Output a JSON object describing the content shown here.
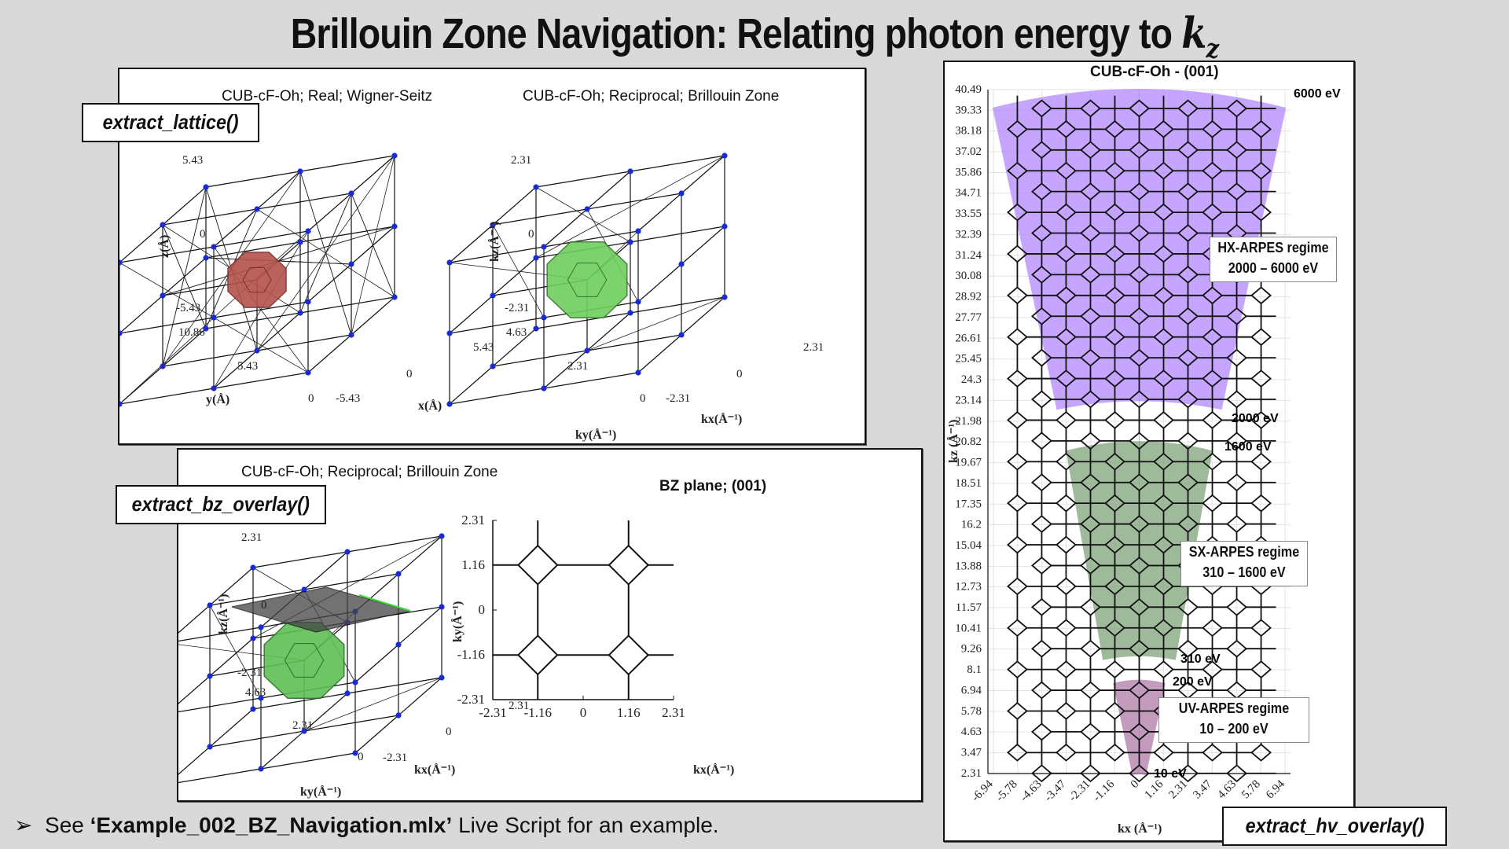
{
  "title": {
    "main": "Brillouin Zone Navigation: Relating photon energy to ",
    "k": "k",
    "sub": "z"
  },
  "panel_top_left": {
    "function_label": "extract_lattice()",
    "left_title": "CUB-cF-Oh; Real; Wigner-Seitz",
    "right_title": "CUB-cF-Oh; Reciprocal; Brillouin Zone",
    "left_ticks": {
      "z": [
        "5.43",
        "0",
        "-5.43"
      ],
      "y": [
        "10.86",
        "5.43",
        "0"
      ],
      "x": [
        "-5.43",
        "0",
        "5.43"
      ]
    },
    "left_axes": {
      "z": "z(Å)",
      "y": "y(Å)",
      "x": "x(Å)"
    },
    "right_ticks": {
      "kz": [
        "2.31",
        "0",
        "-2.31"
      ],
      "ky": [
        "4.63",
        "2.31",
        "0"
      ],
      "kx": [
        "-2.31",
        "0",
        "2.31"
      ]
    },
    "right_axes": {
      "kz": "kz(Å⁻¹)",
      "ky": "ky(Å⁻¹)",
      "kx": "kx(Å⁻¹)"
    }
  },
  "panel_bottom_left": {
    "function_label": "extract_bz_overlay()",
    "left_title": "CUB-cF-Oh; Reciprocal; Brillouin Zone",
    "right_title": "BZ plane; (001)",
    "left_ticks": {
      "kz": [
        "2.31",
        "0",
        "-2.31"
      ],
      "ky": [
        "4.63",
        "2.31",
        "0"
      ],
      "kx": [
        "-2.31",
        "0",
        "2.31"
      ]
    },
    "left_axes": {
      "kz": "kz(Å⁻¹)",
      "ky": "ky(Å⁻¹)",
      "kx": "kx(Å⁻¹)"
    },
    "plane_y_ticks": [
      "2.31",
      "1.16",
      "0",
      "-1.16",
      "-2.31"
    ],
    "plane_x_ticks": [
      "-2.31",
      "-1.16",
      "0",
      "1.16",
      "2.31"
    ],
    "plane_x_label": "kx(Å⁻¹)",
    "plane_y_label": "ky(Å⁻¹)"
  },
  "panel_right": {
    "function_label": "extract_hv_overlay()",
    "title": "CUB-cF-Oh - (001)",
    "y_ticks": [
      "40.49",
      "39.33",
      "38.18",
      "37.02",
      "35.86",
      "34.71",
      "33.55",
      "32.39",
      "31.24",
      "30.08",
      "28.92",
      "27.77",
      "26.61",
      "25.45",
      "24.3",
      "23.14",
      "21.98",
      "20.82",
      "19.67",
      "18.51",
      "17.35",
      "16.2",
      "15.04",
      "13.88",
      "12.73",
      "11.57",
      "10.41",
      "9.26",
      "8.1",
      "6.94",
      "5.78",
      "4.63",
      "3.47",
      "2.31"
    ],
    "x_ticks": [
      "-6.94",
      "-5.78",
      "-4.63",
      "-3.47",
      "-2.31",
      "-1.16",
      "0",
      "1.16",
      "2.31",
      "3.47",
      "4.63",
      "5.78",
      "6.94"
    ],
    "x_label": "kx (Å⁻¹)",
    "y_label": "kz (Å⁻¹)",
    "energy_labels": {
      "e6000": "6000 eV",
      "e2000": "2000 eV",
      "e1600": "1600 eV",
      "e310": "310 eV",
      "e200": "200 eV",
      "e10": "10 eV"
    },
    "regimes": [
      {
        "line1": "HX-ARPES regime",
        "line2": "2000 – 6000 eV"
      },
      {
        "line1": "SX-ARPES regime",
        "line2": "310 – 1600 eV"
      },
      {
        "line1": "UV-ARPES regime",
        "line2": "10 – 200 eV"
      }
    ],
    "colors": {
      "hx": "#b388ff",
      "sx": "#7fa37a",
      "uv": "#b07aa8"
    }
  },
  "note": {
    "prefix": "See ",
    "file": "‘Example_002_BZ_Navigation.mlx’",
    "suffix": " Live Script for an example."
  }
}
